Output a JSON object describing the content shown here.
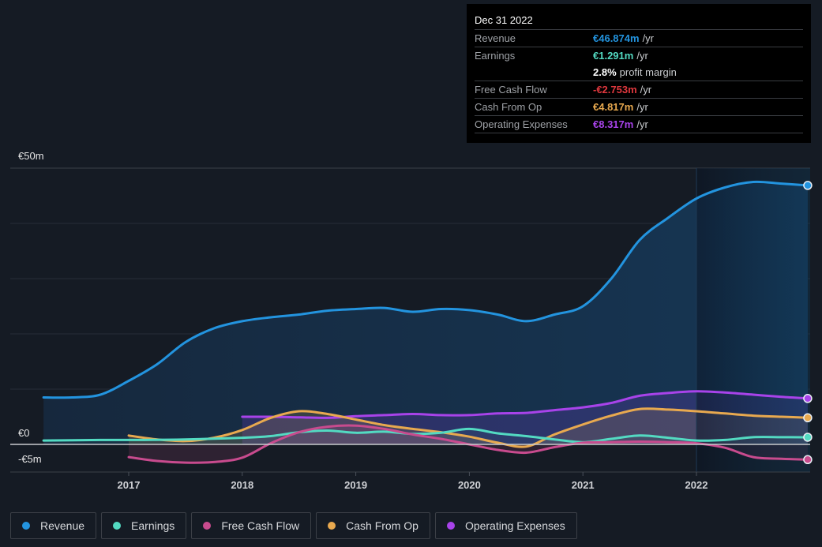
{
  "tooltip": {
    "date": "Dec 31 2022",
    "rows": [
      {
        "label": "Revenue",
        "value": "€46.874m",
        "unit": "/yr",
        "color": "#2394df"
      },
      {
        "label": "Earnings",
        "value": "€1.291m",
        "unit": "/yr",
        "color": "#53dac2"
      },
      {
        "label": "",
        "value": "2.8%",
        "unit": "profit margin",
        "color": "#ffffff"
      },
      {
        "label": "Free Cash Flow",
        "value": "-€2.753m",
        "unit": "/yr",
        "color": "#e0383e"
      },
      {
        "label": "Cash From Op",
        "value": "€4.817m",
        "unit": "/yr",
        "color": "#e8a94f"
      },
      {
        "label": "Operating Expenses",
        "value": "€8.317m",
        "unit": "/yr",
        "color": "#a843ea"
      }
    ]
  },
  "legend": [
    {
      "label": "Revenue",
      "color": "#2394df"
    },
    {
      "label": "Earnings",
      "color": "#53dac2"
    },
    {
      "label": "Free Cash Flow",
      "color": "#c84b8e"
    },
    {
      "label": "Cash From Op",
      "color": "#e8a94f"
    },
    {
      "label": "Operating Expenses",
      "color": "#a843ea"
    }
  ],
  "chart_data": {
    "type": "area",
    "title": "",
    "xlabel": "",
    "ylabel": "",
    "y_tick_labels": [
      {
        "value": 50,
        "label": "€50m"
      },
      {
        "value": 0,
        "label": "€0"
      },
      {
        "value": -5,
        "label": "-€5m"
      }
    ],
    "x_tick_labels": [
      2017,
      2018,
      2019,
      2020,
      2021,
      2022
    ],
    "xlim": [
      2015.65,
      2023.0
    ],
    "ylim": [
      -5,
      50
    ],
    "gridlines_y": [
      50,
      40,
      30,
      20,
      10
    ],
    "highlight_start": 2022.0,
    "units": "€m",
    "series": [
      {
        "name": "Revenue",
        "color": "#2394df",
        "x": [
          2016.25,
          2016.5,
          2016.75,
          2017.0,
          2017.25,
          2017.5,
          2017.75,
          2018.0,
          2018.25,
          2018.5,
          2018.75,
          2019.0,
          2019.25,
          2019.5,
          2019.75,
          2020.0,
          2020.25,
          2020.5,
          2020.75,
          2021.0,
          2021.25,
          2021.5,
          2021.75,
          2022.0,
          2022.25,
          2022.5,
          2022.75,
          2022.98
        ],
        "y": [
          8.5,
          8.5,
          9.0,
          11.5,
          14.5,
          18.5,
          21.0,
          22.3,
          23.0,
          23.5,
          24.2,
          24.5,
          24.7,
          24.0,
          24.5,
          24.3,
          23.5,
          22.3,
          23.5,
          25.0,
          30.0,
          37.0,
          41.0,
          44.5,
          46.5,
          47.5,
          47.2,
          46.874
        ]
      },
      {
        "name": "Earnings",
        "color": "#53dac2",
        "x": [
          2016.25,
          2016.75,
          2017.0,
          2017.5,
          2018.0,
          2018.25,
          2018.5,
          2018.75,
          2019.0,
          2019.25,
          2019.5,
          2019.75,
          2020.0,
          2020.25,
          2020.5,
          2020.75,
          2021.0,
          2021.25,
          2021.5,
          2021.75,
          2022.0,
          2022.25,
          2022.5,
          2022.75,
          2022.98
        ],
        "y": [
          0.7,
          0.8,
          0.8,
          0.9,
          1.2,
          1.5,
          2.2,
          2.5,
          2.1,
          2.3,
          1.9,
          2.1,
          2.8,
          2.0,
          1.5,
          0.9,
          0.4,
          1.0,
          1.6,
          1.2,
          0.7,
          0.8,
          1.3,
          1.3,
          1.291
        ]
      },
      {
        "name": "Free Cash Flow",
        "color": "#c84b8e",
        "x": [
          2017.0,
          2017.25,
          2017.5,
          2017.75,
          2018.0,
          2018.25,
          2018.5,
          2018.75,
          2019.0,
          2019.25,
          2019.5,
          2019.75,
          2020.0,
          2020.25,
          2020.5,
          2020.75,
          2021.0,
          2021.25,
          2021.5,
          2021.75,
          2022.0,
          2022.25,
          2022.5,
          2022.75,
          2022.98
        ],
        "y": [
          -2.3,
          -3.0,
          -3.3,
          -3.2,
          -2.4,
          0.2,
          2.2,
          3.2,
          3.4,
          2.8,
          1.8,
          1.0,
          0.0,
          -1.0,
          -1.5,
          -0.5,
          0.3,
          0.4,
          0.5,
          0.4,
          0.2,
          -0.6,
          -2.3,
          -2.6,
          -2.753
        ]
      },
      {
        "name": "Cash From Op",
        "color": "#e8a94f",
        "x": [
          2017.0,
          2017.25,
          2017.5,
          2017.75,
          2018.0,
          2018.25,
          2018.5,
          2018.75,
          2019.0,
          2019.25,
          2019.5,
          2019.75,
          2020.0,
          2020.25,
          2020.5,
          2020.75,
          2021.0,
          2021.25,
          2021.5,
          2021.75,
          2022.0,
          2022.25,
          2022.5,
          2022.75,
          2022.98
        ],
        "y": [
          1.6,
          0.9,
          0.6,
          1.2,
          2.6,
          4.8,
          6.0,
          5.5,
          4.5,
          3.5,
          2.8,
          2.2,
          1.4,
          0.3,
          -0.4,
          1.8,
          3.6,
          5.2,
          6.4,
          6.3,
          6.0,
          5.6,
          5.2,
          5.0,
          4.817
        ]
      },
      {
        "name": "Operating Expenses",
        "color": "#a843ea",
        "x": [
          2018.0,
          2018.25,
          2018.5,
          2018.75,
          2019.0,
          2019.25,
          2019.5,
          2019.75,
          2020.0,
          2020.25,
          2020.5,
          2020.75,
          2021.0,
          2021.25,
          2021.5,
          2021.75,
          2022.0,
          2022.25,
          2022.5,
          2022.75,
          2022.98
        ],
        "y": [
          5.0,
          5.0,
          4.9,
          4.8,
          5.1,
          5.3,
          5.5,
          5.3,
          5.3,
          5.6,
          5.7,
          6.2,
          6.7,
          7.5,
          8.8,
          9.3,
          9.6,
          9.4,
          9.0,
          8.6,
          8.317
        ]
      }
    ]
  }
}
